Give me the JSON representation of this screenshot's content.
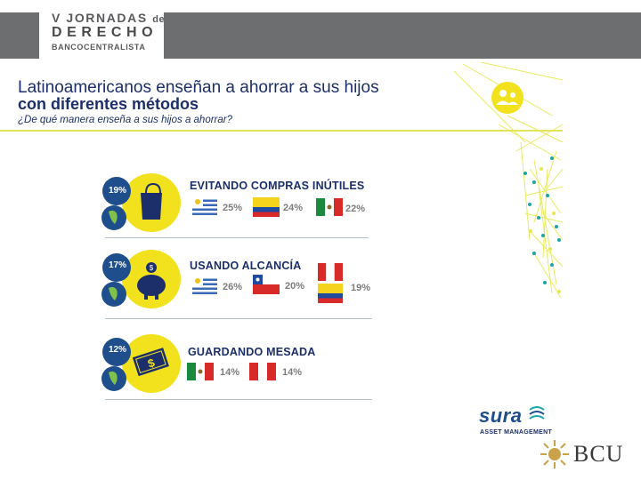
{
  "header": {
    "line1": "V JORNADAS",
    "line1_de": "de",
    "line2": "DERECHO",
    "line3": "BANCOCENTRALISTA"
  },
  "slide": {
    "title_line1": "Latinoamericanos enseñan a ahorrar a sus hijos",
    "title_line2": "con diferentes métodos",
    "subtitle": "¿De qué manera enseña a sus hijos a ahorrar?"
  },
  "methods": [
    {
      "percent": "19%",
      "title": "EVITANDO COMPRAS INÚTILES",
      "icon": "shopping-bag-icon",
      "countries": [
        {
          "flag": "uruguay",
          "value": "25%"
        },
        {
          "flag": "colombia",
          "value": "24%"
        },
        {
          "flag": "mexico",
          "value": "22%"
        }
      ]
    },
    {
      "percent": "17%",
      "title": "USANDO ALCANCÍA",
      "icon": "piggy-bank-icon",
      "countries": [
        {
          "flag": "uruguay",
          "value": "26%"
        },
        {
          "flag": "chile",
          "value": "20%"
        },
        {
          "flag": "peru-colombia",
          "value": "19%"
        }
      ]
    },
    {
      "percent": "12%",
      "title": "GUARDANDO MESADA",
      "icon": "money-bill-icon",
      "countries": [
        {
          "flag": "mexico",
          "value": "14%"
        },
        {
          "flag": "peru",
          "value": "14%"
        }
      ]
    }
  ],
  "logos": {
    "sura": "sura",
    "sura_sub": "ASSET MANAGEMENT",
    "bcu": "BCU"
  },
  "colors": {
    "navy": "#1c2f6b",
    "yellow": "#f2e21d",
    "lime": "#e2e55a",
    "blue_circle": "#1e4e8c",
    "teal": "#1aa6a6",
    "gray_bar": "#6d6e70"
  }
}
